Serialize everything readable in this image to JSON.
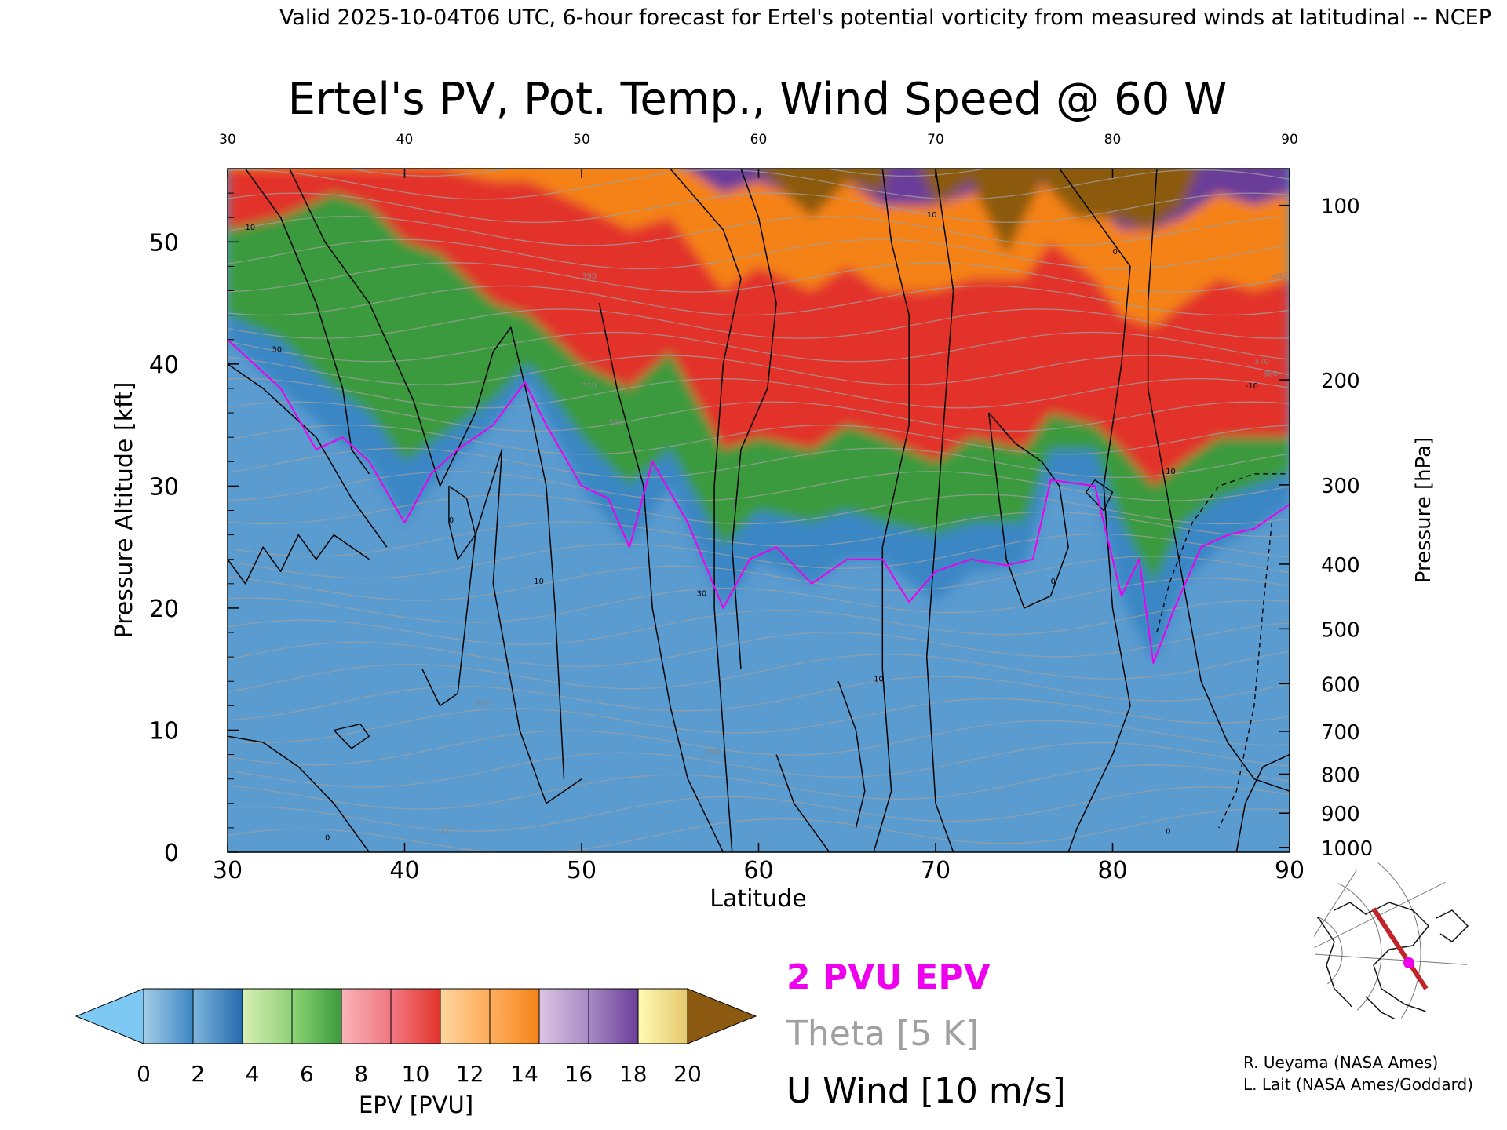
{
  "header": {
    "valid_line": "Valid 2025-10-04T06 UTC, 6-hour forecast for Ertel's potential vorticity from measured winds at latitudinal -- NCEP"
  },
  "chart_data": {
    "type": "heatmap",
    "title": "Ertel's PV, Pot. Temp., Wind Speed @ 60 W",
    "xlabel": "Latitude",
    "ylabel": "Pressure Altitude [kft]",
    "y2label": "Pressure [hPa]",
    "xlim": [
      30,
      90
    ],
    "ylim": [
      0,
      56
    ],
    "x_ticks": [
      "30",
      "40",
      "50",
      "60",
      "70",
      "80",
      "90"
    ],
    "y_ticks": [
      "0",
      "10",
      "20",
      "30",
      "40",
      "50"
    ],
    "y2_ticks": [
      {
        "label": "100",
        "kft": 53.0
      },
      {
        "label": "200",
        "kft": 38.7
      },
      {
        "label": "300",
        "kft": 30.1
      },
      {
        "label": "400",
        "kft": 23.6
      },
      {
        "label": "500",
        "kft": 18.3
      },
      {
        "label": "600",
        "kft": 13.8
      },
      {
        "label": "700",
        "kft": 9.9
      },
      {
        "label": "800",
        "kft": 6.4
      },
      {
        "label": "900",
        "kft": 3.2
      },
      {
        "label": "1000",
        "kft": 0.4
      }
    ],
    "colorbar": {
      "label": "EPV [PVU]",
      "ticks": [
        "0",
        "2",
        "4",
        "6",
        "8",
        "10",
        "12",
        "14",
        "16",
        "18",
        "20"
      ],
      "below_color": "#7ec8f4",
      "above_color": "#8b5a10",
      "segments": [
        [
          "#a4cce6",
          "#3b86c4"
        ],
        [
          "#7db6dc",
          "#2669ad"
        ],
        [
          "#d8f0b4",
          "#8fd07a"
        ],
        [
          "#8ed476",
          "#3a9a3c"
        ],
        [
          "#f8b4b8",
          "#f07780"
        ],
        [
          "#f27a82",
          "#e2332c"
        ],
        [
          "#fdd6a0",
          "#fdaa58"
        ],
        [
          "#feb060",
          "#f58218"
        ],
        [
          "#dcc4e4",
          "#a88ac4"
        ],
        [
          "#a88ac4",
          "#6a3d9a"
        ],
        [
          "#fffab4",
          "#e6c86c"
        ]
      ]
    },
    "tropopause_2pvu_kft": {
      "lat": [
        30,
        31.5,
        33,
        35,
        36.5,
        38,
        40,
        41.5,
        43,
        45,
        46.8,
        48,
        50,
        51.5,
        52.7,
        54,
        56,
        58,
        59.5,
        61,
        63,
        65,
        67,
        68.5,
        70,
        72,
        74,
        75.5,
        76.5,
        79,
        80.5,
        81.5,
        82.3,
        83.5,
        85,
        86.5,
        88,
        89,
        90
      ],
      "alt": [
        42,
        40,
        38,
        33,
        34,
        32,
        27,
        31,
        33,
        35,
        38.5,
        35,
        30,
        29,
        25,
        32,
        27,
        20,
        24,
        25,
        22,
        24,
        24,
        20.5,
        23,
        24,
        23.5,
        24,
        30.5,
        30,
        21,
        24,
        15.5,
        20,
        25,
        26,
        26.5,
        27.5,
        28.5
      ]
    },
    "bands_kft": [
      {
        "color": "#3b86c4",
        "lat": [
          30,
          33,
          36,
          38,
          40,
          42,
          45,
          47,
          50,
          52.7,
          55,
          58,
          60,
          63,
          65,
          67,
          70,
          72,
          75,
          76.5,
          79,
          80.5,
          82.3,
          84,
          86,
          88,
          90
        ],
        "alt": [
          42,
          38,
          34,
          32,
          27,
          31,
          35,
          38.5,
          30,
          25,
          30,
          20,
          24,
          22,
          24,
          24,
          20.5,
          23,
          23.5,
          30.5,
          30,
          21,
          15.5,
          22,
          25,
          26.5,
          28.5
        ]
      },
      {
        "color": "#3a9a3c",
        "lat": [
          30,
          33,
          36,
          38,
          40,
          42,
          45,
          47,
          50,
          52.7,
          55,
          58,
          60,
          63,
          65,
          67,
          70,
          72,
          75,
          76.5,
          79,
          80.5,
          82.3,
          84,
          86,
          88,
          90
        ],
        "alt": [
          44,
          42,
          38,
          36,
          32,
          34,
          37,
          40,
          34,
          30,
          33,
          25,
          28,
          27,
          28,
          27,
          26,
          27,
          27,
          33,
          33,
          27,
          22,
          27,
          29,
          30,
          31
        ]
      },
      {
        "color": "#e2332c",
        "lat": [
          30,
          33,
          36,
          38,
          40,
          42,
          45,
          47,
          50,
          52.7,
          55,
          58,
          60,
          63,
          65,
          67,
          70,
          72,
          75,
          76.5,
          79,
          80.5,
          82.3,
          84,
          86,
          88,
          90
        ],
        "alt": [
          51,
          52,
          54,
          53,
          50,
          49,
          45,
          44,
          40,
          38,
          41,
          33,
          34,
          33,
          35,
          34,
          32,
          34,
          33,
          36,
          35,
          33,
          30,
          32,
          34,
          34,
          34
        ]
      },
      {
        "color": "#f58218",
        "lat": [
          30,
          33,
          36,
          38,
          40,
          42,
          45,
          47,
          50,
          52.7,
          55,
          58,
          60,
          63,
          65,
          67,
          70,
          72,
          75,
          76.5,
          79,
          80.5,
          82.3,
          84,
          86,
          88,
          90
        ],
        "alt": [
          56,
          56,
          56,
          56,
          56,
          56,
          55,
          55,
          53,
          51,
          52,
          46,
          48,
          46,
          48,
          46,
          46,
          47,
          47,
          50,
          47,
          44,
          43,
          45,
          47,
          46,
          47
        ]
      },
      {
        "color": "#6a3d9a",
        "lat": [
          30,
          33,
          36,
          38,
          40,
          42,
          45,
          47,
          50,
          52.7,
          55,
          58,
          60,
          63,
          65,
          67,
          70,
          72,
          75,
          76.5,
          79,
          80.5,
          82.3,
          84,
          86,
          88,
          90
        ],
        "alt": [
          60,
          60,
          60,
          60,
          60,
          60,
          60,
          60,
          58,
          57,
          57,
          54,
          55,
          53,
          55,
          53,
          53,
          54,
          54,
          55,
          53,
          51,
          51,
          52,
          54,
          53,
          54
        ]
      },
      {
        "color": "#8b5a10",
        "lat": [
          56,
          60,
          63,
          65,
          67,
          68,
          70,
          72,
          74,
          76,
          78,
          80,
          82,
          84,
          86,
          90
        ],
        "alt": [
          60,
          56,
          52,
          55,
          54,
          60,
          53,
          55,
          49,
          55,
          52,
          52,
          51,
          53,
          60,
          60
        ]
      }
    ],
    "ticks_kft": [
      {
        "lat": 36.8,
        "alt": 33
      },
      {
        "lat": 57.5,
        "alt": 21
      },
      {
        "lat": 71.5,
        "alt": 21
      },
      {
        "lat": 85,
        "alt": 25
      }
    ],
    "theta_contour_labels_K": [
      {
        "text": "310",
        "lat": 42,
        "alt": 1.6
      },
      {
        "text": "320",
        "lat": 44,
        "alt": 12
      },
      {
        "text": "330",
        "lat": 57,
        "alt": 8
      },
      {
        "text": "340",
        "lat": 51.5,
        "alt": 35
      },
      {
        "text": "350",
        "lat": 50,
        "alt": 38
      },
      {
        "text": "370",
        "lat": 88,
        "alt": 40
      },
      {
        "text": "380",
        "lat": 88.5,
        "alt": 39
      },
      {
        "text": "390",
        "lat": 50,
        "alt": 47
      },
      {
        "text": "400",
        "lat": 89,
        "alt": 47
      }
    ],
    "u_wind_contour_labels_ms": [
      {
        "text": "10",
        "lat": 31,
        "alt": 51
      },
      {
        "text": "10",
        "lat": 47.3,
        "alt": 22
      },
      {
        "text": "10",
        "lat": 66.5,
        "alt": 14
      },
      {
        "text": "10",
        "lat": 69.5,
        "alt": 52
      },
      {
        "text": "10",
        "lat": 83,
        "alt": 31
      },
      {
        "text": "30",
        "lat": 32.5,
        "alt": 41
      },
      {
        "text": "30",
        "lat": 56.5,
        "alt": 21
      },
      {
        "text": "0",
        "lat": 42.5,
        "alt": 27
      },
      {
        "text": "0",
        "lat": 35.5,
        "alt": 1
      },
      {
        "text": "0",
        "lat": 76.5,
        "alt": 22
      },
      {
        "text": "0",
        "lat": 80,
        "alt": 49
      },
      {
        "text": "0",
        "lat": 83,
        "alt": 1.5
      },
      {
        "text": "-10",
        "lat": 87.5,
        "alt": 38
      }
    ]
  },
  "legend": {
    "epv_contour": "2 PVU EPV",
    "theta": "Theta [5 K]",
    "u_wind": "U Wind [10 m/s]"
  },
  "credits": {
    "line1": "R. Ueyama (NASA Ames)",
    "line2": "L. Lait (NASA Ames/Goddard)"
  },
  "colors": {
    "epv_contour": "#ee00ee",
    "theta": "#a0a0a0",
    "u_wind": "#000000",
    "section_line": "#c0252a",
    "section_point": "#ee00ee"
  }
}
